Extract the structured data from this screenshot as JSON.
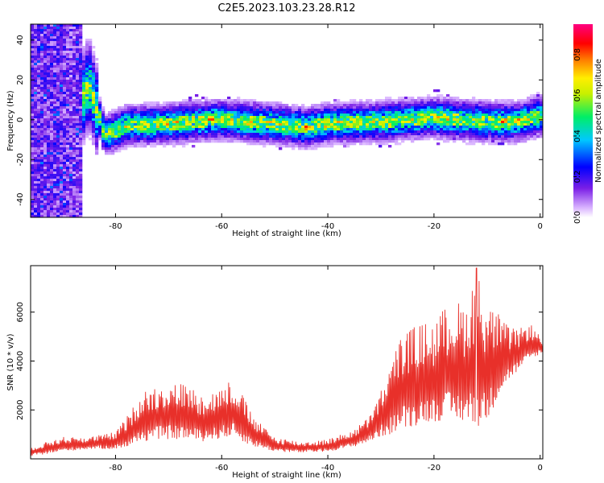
{
  "figure_title": "C2E5.2023.103.23.28.R12",
  "colors": {
    "snr_line": "#e8302a",
    "colormap": [
      "#ffffff",
      "#d9b3ff",
      "#7a1fe6",
      "#0000ff",
      "#00c8ff",
      "#00ee66",
      "#ffee00",
      "#ff7700",
      "#ff0000",
      "#ff0080"
    ]
  },
  "chart_data": [
    {
      "type": "heatmap",
      "title": "C2E5.2023.103.23.28.R12",
      "xlabel": "Height of straight line (km)",
      "ylabel": "Frequency (Hz)",
      "xlim": [
        -96,
        0.5
      ],
      "ylim": [
        -49,
        48
      ],
      "xticks": [
        -80,
        -60,
        -40,
        -20,
        0
      ],
      "yticks": [
        -40,
        -20,
        0,
        20,
        40
      ],
      "colorbar": {
        "label": "Normalized spectral amplitude",
        "range": [
          0.0,
          0.95
        ],
        "ticks": [
          "0.0",
          "0.2",
          "0.4",
          "0.6",
          "0.8"
        ]
      },
      "band_center_hz": [
        [
          -95,
          2
        ],
        [
          -88,
          0
        ],
        [
          -85,
          18
        ],
        [
          -82,
          -8
        ],
        [
          -78,
          -3
        ],
        [
          -70,
          -2
        ],
        [
          -60,
          0
        ],
        [
          -50,
          -2
        ],
        [
          -44,
          -4
        ],
        [
          -40,
          -2
        ],
        [
          -30,
          -1
        ],
        [
          -20,
          1
        ],
        [
          -10,
          -1
        ],
        [
          -4,
          -1
        ],
        [
          0,
          2
        ]
      ],
      "hotspots": [
        {
          "x": -62,
          "y": 0.5,
          "value": 0.9
        },
        {
          "x": -44,
          "y": -4,
          "value": 0.9
        },
        {
          "x": -7,
          "y": -1,
          "value": 0.85
        },
        {
          "x": -4,
          "y": 0,
          "value": 0.8
        },
        {
          "x": -34,
          "y": 0,
          "value": 0.6
        },
        {
          "x": -70,
          "y": -2,
          "value": 0.5
        },
        {
          "x": -14,
          "y": -2,
          "value": 0.5
        }
      ]
    },
    {
      "type": "line",
      "title": "",
      "xlabel": "Height of straight line (km)",
      "ylabel": "SNR (10 * v/v)",
      "xlim": [
        -96,
        0.5
      ],
      "ylim": [
        0,
        7900
      ],
      "xticks": [
        -80,
        -60,
        -40,
        -20,
        0
      ],
      "yticks": [
        2000,
        4000,
        6000
      ],
      "envelope_x": [
        -96,
        -90,
        -85,
        -80,
        -77,
        -75,
        -72,
        -70,
        -67,
        -64,
        -61,
        -58,
        -56,
        -54,
        -50,
        -45,
        -40,
        -35,
        -32,
        -30,
        -28,
        -26,
        -24,
        -22,
        -20,
        -18,
        -16,
        -14,
        -12,
        -10,
        -8,
        -6,
        -4,
        -2,
        0
      ],
      "envelope_low": [
        100,
        300,
        400,
        400,
        500,
        700,
        800,
        800,
        800,
        700,
        800,
        900,
        700,
        500,
        300,
        250,
        300,
        500,
        700,
        900,
        1000,
        1200,
        1300,
        1500,
        1500,
        1600,
        1500,
        1500,
        1300,
        1500,
        2500,
        3200,
        3600,
        4000,
        4300
      ],
      "envelope_high": [
        500,
        900,
        900,
        1100,
        2000,
        2800,
        3000,
        3100,
        3100,
        2700,
        2800,
        3300,
        2600,
        1700,
        900,
        700,
        800,
        1200,
        1800,
        2800,
        4000,
        5200,
        5400,
        5600,
        5600,
        6200,
        6500,
        6300,
        7800,
        6400,
        6000,
        5400,
        5300,
        5600,
        5000
      ],
      "peak": {
        "x": -12,
        "y": 7800
      }
    }
  ]
}
